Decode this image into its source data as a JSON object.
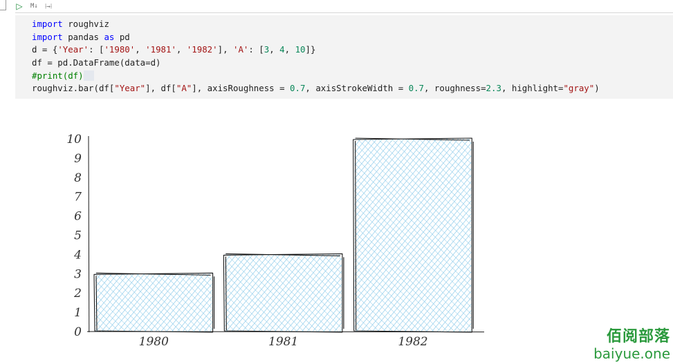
{
  "toolbar": {
    "run_icon": "run-triangle-icon",
    "run_glyph": "▷",
    "markdown_label": "M↓",
    "split_label": "⁞→⁞"
  },
  "code_lines": [
    [
      [
        "kw",
        "import"
      ],
      [
        "txt",
        " roughviz"
      ]
    ],
    [
      [
        "kw",
        "import"
      ],
      [
        "txt",
        " pandas "
      ],
      [
        "kw",
        "as"
      ],
      [
        "txt",
        " pd"
      ]
    ],
    [
      [
        "txt",
        "d = {"
      ],
      [
        "str",
        "'Year'"
      ],
      [
        "txt",
        ": ["
      ],
      [
        "str",
        "'1980'"
      ],
      [
        "txt",
        ", "
      ],
      [
        "str",
        "'1981'"
      ],
      [
        "txt",
        ", "
      ],
      [
        "str",
        "'1982'"
      ],
      [
        "txt",
        "], "
      ],
      [
        "str",
        "'A'"
      ],
      [
        "txt",
        ": ["
      ],
      [
        "num",
        "3"
      ],
      [
        "txt",
        ", "
      ],
      [
        "num",
        "4"
      ],
      [
        "txt",
        ", "
      ],
      [
        "num",
        "10"
      ],
      [
        "txt",
        "]}"
      ]
    ],
    [
      [
        "txt",
        "df = pd.DataFrame(data=d)"
      ]
    ],
    [
      [
        "cm",
        "#print(df)"
      ],
      [
        "hl",
        "  "
      ]
    ],
    [
      [
        "txt",
        "roughviz.bar(df["
      ],
      [
        "str",
        "\"Year\""
      ],
      [
        "txt",
        "], df["
      ],
      [
        "str",
        "\"A\""
      ],
      [
        "txt",
        "], axisRoughness = "
      ],
      [
        "num",
        "0.7"
      ],
      [
        "txt",
        ", axisStrokeWidth = "
      ],
      [
        "num",
        "0.7"
      ],
      [
        "txt",
        ", roughness="
      ],
      [
        "num",
        "2.3"
      ],
      [
        "txt",
        ", highlight="
      ],
      [
        "str",
        "\"gray\""
      ],
      [
        "txt",
        ")"
      ]
    ]
  ],
  "chart_data": {
    "type": "bar",
    "categories": [
      "1980",
      "1981",
      "1982"
    ],
    "values": [
      3,
      4,
      10
    ],
    "ylim": [
      0,
      10
    ],
    "yticks": [
      "0",
      "1",
      "2",
      "3",
      "4",
      "5",
      "6",
      "7",
      "8",
      "9",
      "10"
    ],
    "fill_color": "#8ccbea",
    "stroke_color": "#1a1a1a",
    "grid": false,
    "title": "",
    "xlabel": "",
    "ylabel": ""
  },
  "watermark": {
    "line1": "佰阅部落",
    "line2": "baiyue.one"
  }
}
